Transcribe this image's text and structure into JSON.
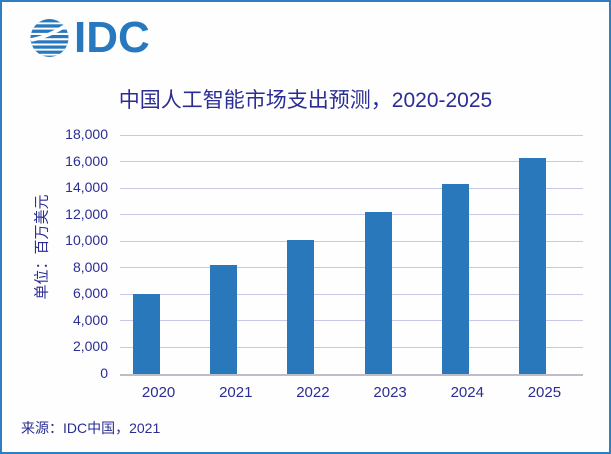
{
  "logo": {
    "brand": "IDC",
    "icon": "idc-globe-icon"
  },
  "colors": {
    "brand_blue": "#2878BE",
    "bar_blue": "#2A78BC",
    "navy_text": "#2B2D93",
    "gridline": "#C8C9E6",
    "baseline": "#BCBDC9",
    "card_border": "#2E7FC1"
  },
  "chart_data": {
    "type": "bar",
    "title": "中国人工智能市场支出预测，2020-2025",
    "ylabel": "单位：百万美元",
    "xlabel": "",
    "categories": [
      "2020",
      "2021",
      "2022",
      "2023",
      "2024",
      "2025"
    ],
    "values": [
      6000,
      8200,
      10100,
      12200,
      14300,
      16300
    ],
    "ylim": [
      0,
      18000
    ],
    "ytick_step": 2000,
    "ytick_labels": [
      "0",
      "2,000",
      "4,000",
      "6,000",
      "8,000",
      "10,000",
      "12,000",
      "14,000",
      "16,000",
      "18,000"
    ],
    "grid": true,
    "legend": "none",
    "bar_color": "#2A78BC"
  },
  "footer": {
    "source": "来源：IDC中国，2021"
  }
}
